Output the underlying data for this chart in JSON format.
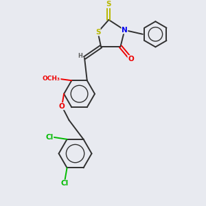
{
  "bg_color": "#e8eaf0",
  "bond_color": "#303030",
  "atom_colors": {
    "S": "#b8b800",
    "N": "#0000ee",
    "O": "#ee0000",
    "Cl": "#00bb00",
    "C": "#303030",
    "H": "#707070"
  },
  "bond_lw": 1.4,
  "font_size": 7.5,
  "figsize": [
    3.0,
    3.0
  ],
  "dpi": 100,
  "xlim": [
    0,
    10
  ],
  "ylim": [
    0,
    10
  ]
}
